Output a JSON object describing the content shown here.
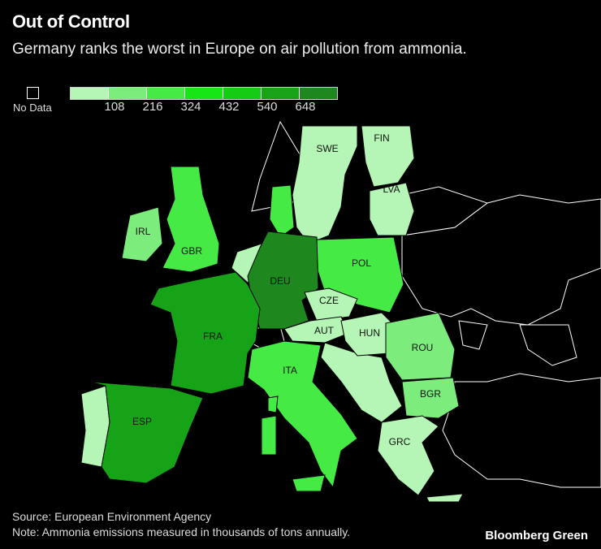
{
  "title": "Out of Control",
  "subtitle": "Germany ranks the worst in Europe on air pollution from ammonia.",
  "legend": {
    "no_data_label": "No Data",
    "ticks": [
      "108",
      "216",
      "324",
      "432",
      "540",
      "648"
    ],
    "colors": [
      "#b5f5b5",
      "#7ced7c",
      "#45ea45",
      "#16e616",
      "#14cc14",
      "#17a317",
      "#1e881e"
    ]
  },
  "countries": [
    {
      "code": "SWE",
      "class": 0
    },
    {
      "code": "FIN",
      "class": 0
    },
    {
      "code": "LVA",
      "class": 0
    },
    {
      "code": "IRL",
      "class": 1
    },
    {
      "code": "GBR",
      "class": 2
    },
    {
      "code": "POL",
      "class": 2
    },
    {
      "code": "DEU",
      "class": 6
    },
    {
      "code": "CZE",
      "class": 0
    },
    {
      "code": "AUT",
      "class": 0
    },
    {
      "code": "HUN",
      "class": 0
    },
    {
      "code": "FRA",
      "class": 5
    },
    {
      "code": "ROU",
      "class": 1
    },
    {
      "code": "ITA",
      "class": 2
    },
    {
      "code": "BGR",
      "class": 1
    },
    {
      "code": "ESP",
      "class": 5
    },
    {
      "code": "GRC",
      "class": 0
    }
  ],
  "footer": {
    "source": "Source: European Environment Agency",
    "note": "Note: Ammonia emissions measured in thousands of tons annually."
  },
  "brand": "Bloomberg Green"
}
